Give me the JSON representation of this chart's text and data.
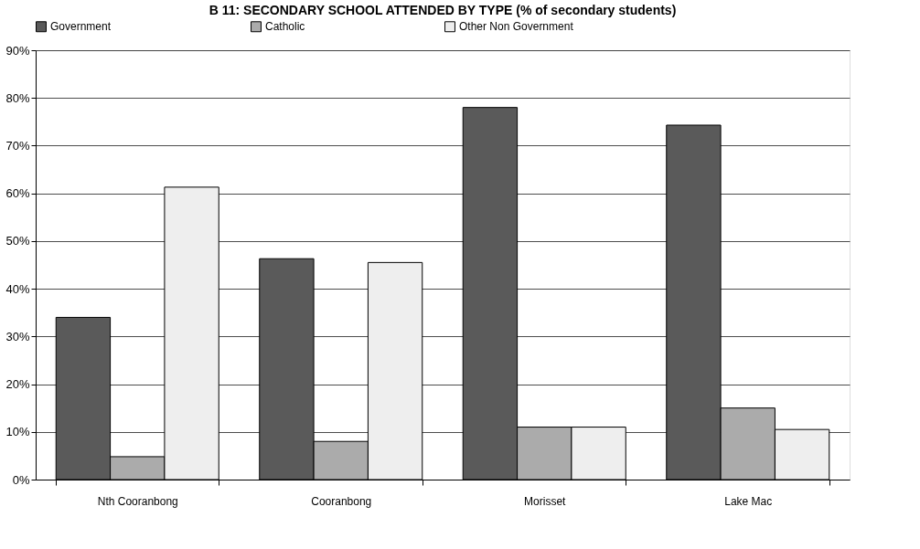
{
  "chart_data": {
    "type": "bar",
    "title": "B 11: SECONDARY SCHOOL ATTENDED BY TYPE (% of secondary students)",
    "categories": [
      "Nth Cooranbong",
      "Cooranbong",
      "Morisset",
      "Lake Mac"
    ],
    "series": [
      {
        "name": "Government",
        "color": "#5a5a5a",
        "values": [
          34,
          46.3,
          78,
          74.3
        ]
      },
      {
        "name": "Catholic",
        "color": "#ababab",
        "values": [
          4.8,
          8,
          11,
          15
        ]
      },
      {
        "name": "Other Non Government",
        "color": "#eeeeee",
        "values": [
          61.3,
          45.5,
          11,
          10.5
        ]
      }
    ],
    "ylim": [
      0,
      90
    ],
    "yticks": [
      {
        "value": 0,
        "label": "0%"
      },
      {
        "value": 10,
        "label": "10%"
      },
      {
        "value": 20,
        "label": "20%"
      },
      {
        "value": 30,
        "label": "30%"
      },
      {
        "value": 40,
        "label": "40%"
      },
      {
        "value": 50,
        "label": "50%"
      },
      {
        "value": 60,
        "label": "60%"
      },
      {
        "value": 70,
        "label": "70%"
      },
      {
        "value": 80,
        "label": "80%"
      },
      {
        "value": 90,
        "label": "90%"
      }
    ],
    "grid": "y",
    "legend": "top"
  }
}
